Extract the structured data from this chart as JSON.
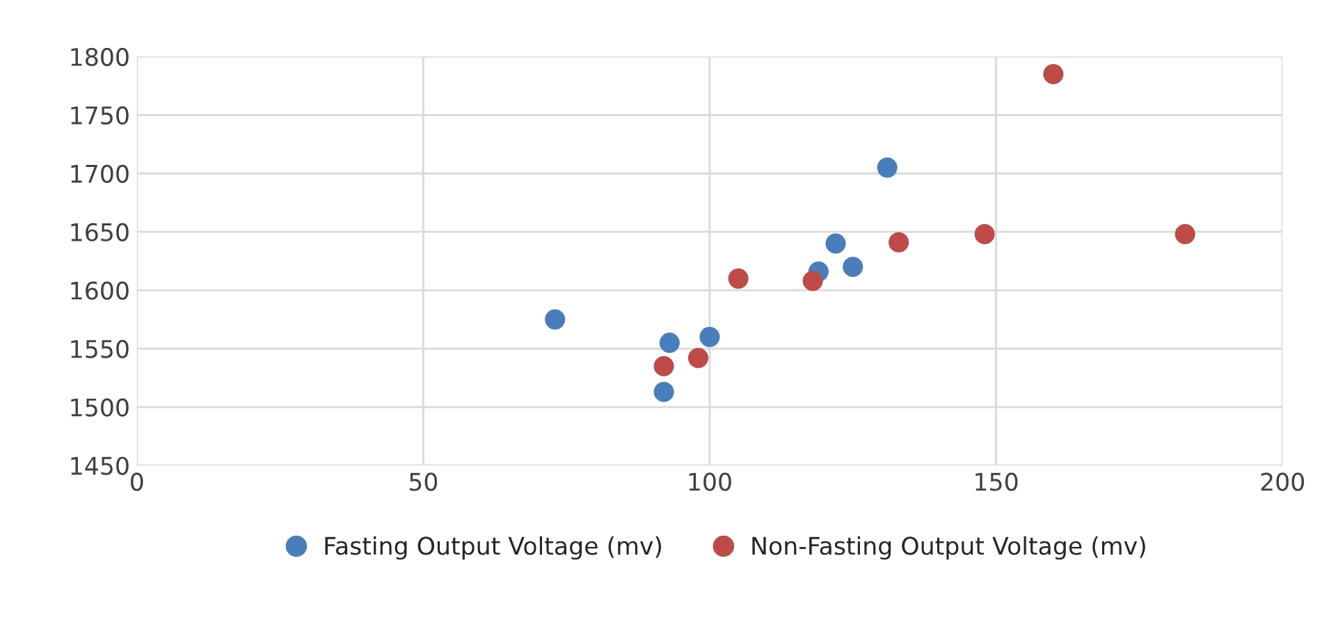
{
  "chart_data": {
    "type": "scatter",
    "xlim": [
      0,
      200
    ],
    "xticks": [
      0,
      50,
      100,
      150,
      200
    ],
    "ylim": [
      1450,
      1800
    ],
    "yticks": [
      1450,
      1500,
      1550,
      1600,
      1650,
      1700,
      1750,
      1800
    ],
    "grid": true,
    "legend": "bottom",
    "marker": "circle",
    "series": [
      {
        "name": "Fasting Output Voltage (mv)",
        "color": "#4a7ebb",
        "x": [
          73,
          93,
          100,
          92,
          119,
          122,
          125,
          131
        ],
        "values": [
          1575,
          1555,
          1560,
          1513,
          1616,
          1640,
          1620,
          1705
        ]
      },
      {
        "name": "Non-Fasting Output Voltage (mv)",
        "color": "#be4b48",
        "x": [
          92,
          98,
          105,
          118,
          133,
          148,
          160,
          183
        ],
        "values": [
          1535,
          1542,
          1610,
          1608,
          1641,
          1648,
          1785,
          1648
        ]
      }
    ]
  }
}
